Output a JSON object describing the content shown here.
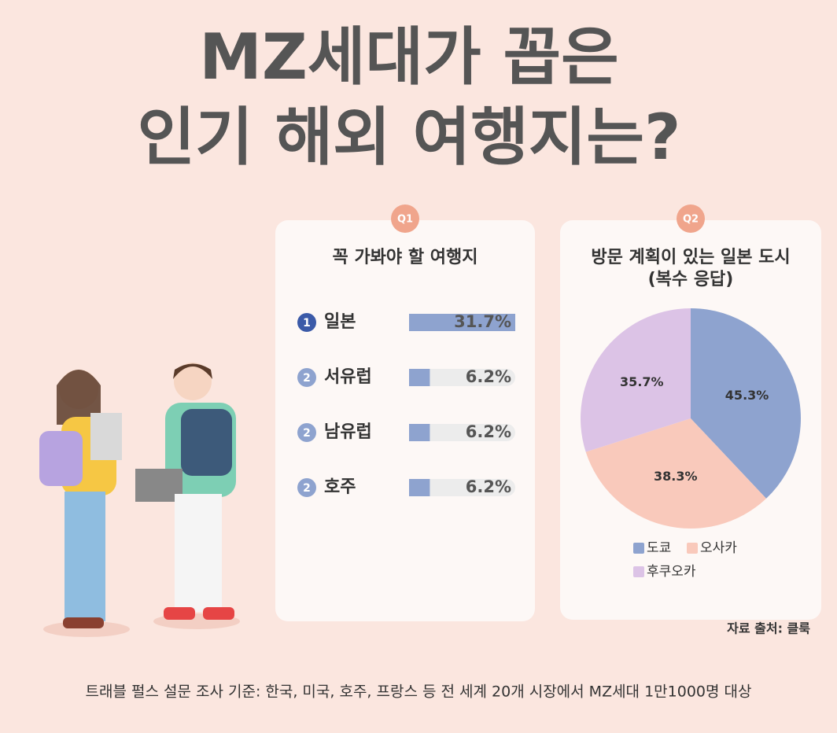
{
  "title": [
    "MZ세대가 꼽은",
    "인기 해외 여행지는?"
  ],
  "source": "자료 출처: 클룩",
  "footnote": "트래블 펄스 설문 조사 기준: 한국, 미국, 호주, 프랑스 등 전 세계 20개 시장에서 MZ세대 1만1000명 대상",
  "chart_data": [
    {
      "type": "bar",
      "badge": "Q1",
      "title": "꼭 가봐야 할 여행지",
      "categories": [
        "일본",
        "서유럽",
        "남유럽",
        "호주"
      ],
      "ranks": [
        1,
        2,
        2,
        2
      ],
      "values": [
        31.7,
        6.2,
        6.2,
        6.2
      ],
      "value_labels": [
        "31.7%",
        "6.2%",
        "6.2%",
        "6.2%"
      ],
      "color": "#8ea3cf"
    },
    {
      "type": "pie",
      "badge": "Q2",
      "title": [
        "방문 계획이 있는 일본 도시",
        "(복수 응답)"
      ],
      "categories": [
        "도쿄",
        "오사카",
        "후쿠오카"
      ],
      "values": [
        45.3,
        38.3,
        35.7
      ],
      "value_labels": [
        "45.3%",
        "38.3%",
        "35.7%"
      ],
      "colors": [
        "#8ea3cf",
        "#f9c9bb",
        "#dcc3e6"
      ]
    }
  ]
}
